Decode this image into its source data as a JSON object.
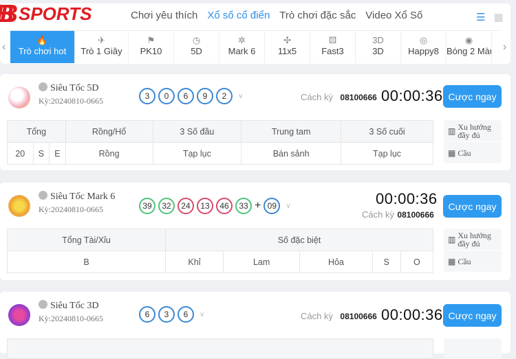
{
  "logo": "BSPORTS",
  "nav": {
    "tabs": [
      "Chơi yêu thích",
      "Xổ số cổ điển",
      "Trò chơi đặc sắc",
      "Video Xổ Số"
    ],
    "active": 1
  },
  "categories": [
    {
      "label": "Trò chơi hot",
      "icon": "flame-icon",
      "glyph": "🔥"
    },
    {
      "label": "Trò 1 Giây",
      "icon": "rocket-icon",
      "glyph": "✈"
    },
    {
      "label": "PK10",
      "icon": "flag-icon",
      "glyph": "⚑"
    },
    {
      "label": "5D",
      "icon": "clock-icon",
      "glyph": "◷"
    },
    {
      "label": "Mark 6",
      "icon": "sparkle-icon",
      "glyph": "✲"
    },
    {
      "label": "11x5",
      "icon": "pinwheel-icon",
      "glyph": "✣"
    },
    {
      "label": "Fast3",
      "icon": "dice-icon",
      "glyph": "⚄"
    },
    {
      "label": "3D",
      "icon": "3d-icon",
      "glyph": "3D"
    },
    {
      "label": "Happy8",
      "icon": "coin-icon",
      "glyph": "◎"
    },
    {
      "label": "Bóng 2 Màu",
      "icon": "ball-icon",
      "glyph": "◉"
    }
  ],
  "common": {
    "gap_label": "Cách kỳ",
    "bet": "Cược ngay",
    "trend": "Xu hướng đầy đủ",
    "road": "Cầu"
  },
  "games": [
    {
      "name": "Siêu Tốc 5D",
      "key": "Kỳ:20240810-0665",
      "balls": [
        "3",
        "0",
        "6",
        "9",
        "2"
      ],
      "period": "08100666",
      "timer": "00:00:36",
      "head": [
        "Tổng",
        "Rồng/Hổ",
        "3 Số đầu",
        "Trung tam",
        "3 Số cuối"
      ],
      "row": [
        "20",
        "S",
        "E",
        "Rồng",
        "Tạp lục",
        "Bán sảnh",
        "Tạp lục"
      ]
    },
    {
      "name": "Siêu Tốc Mark 6",
      "key": "Kỳ:20240810-0665",
      "balls": [
        "39",
        "32",
        "24",
        "13",
        "46",
        "33"
      ],
      "special": "09",
      "period": "08100666",
      "timer": "00:00:36",
      "ball_colors": [
        "green",
        "green",
        "red",
        "red",
        "red",
        "green",
        "blue"
      ],
      "head": [
        "Tổng Tài/Xỉu",
        "Số đặc biệt"
      ],
      "row": [
        "B",
        "Khỉ",
        "Lam",
        "Hỏa",
        "S",
        "O"
      ]
    },
    {
      "name": "Siêu Tốc 3D",
      "key": "Kỳ:20240810-0665",
      "balls": [
        "6",
        "3",
        "6"
      ],
      "period": "08100666",
      "timer": "00:00:36"
    }
  ],
  "colors": {
    "accent": "#2f9bf0",
    "brand": "#e01b22",
    "ball_blue": "#3a87d4",
    "ball_green": "#4cc47a",
    "ball_red": "#d84a6a"
  }
}
